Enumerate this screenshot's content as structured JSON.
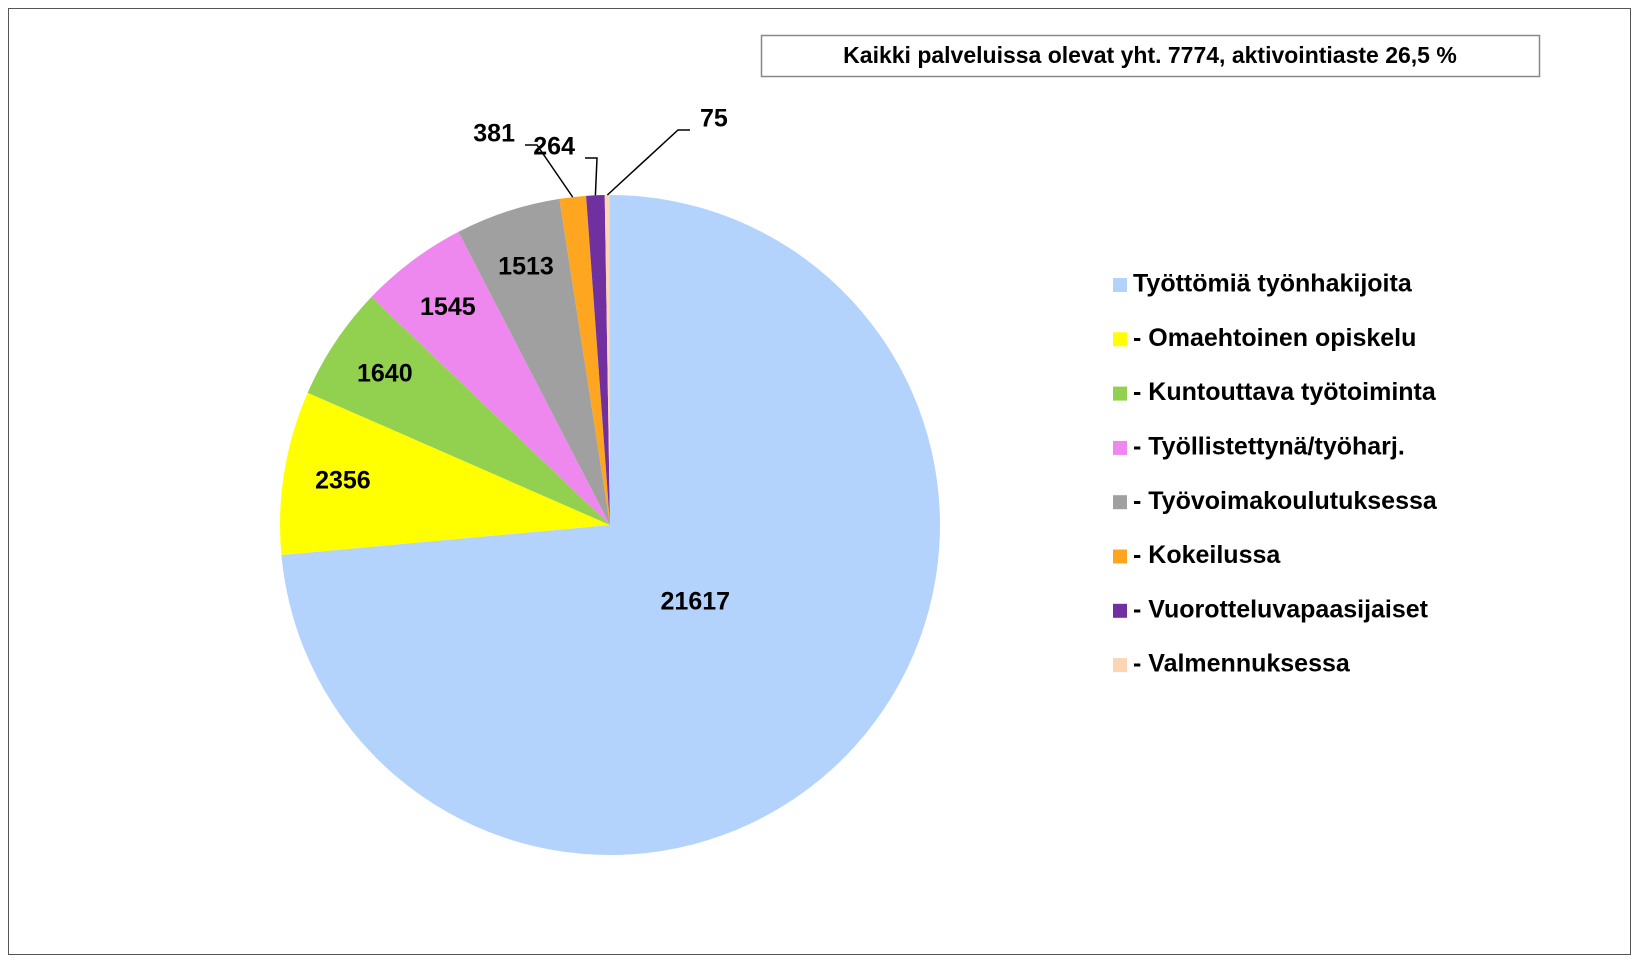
{
  "chart_data": {
    "type": "pie",
    "annotation": "Kaikki palveluissa olevat yht. 7774, aktivointiaste 26,5 %",
    "categories": [
      "Työttömiä työnhakijoita",
      " - Omaehtoinen opiskelu",
      " - Kuntouttava työtoiminta",
      " - Työllistettynä/työharj.",
      " - Työvoimakoulutuksessa",
      " - Kokeilussa",
      " - Vuorotteluvapaasijaiset",
      " - Valmennuksessa"
    ],
    "values": [
      21617,
      2356,
      1640,
      1545,
      1513,
      381,
      264,
      75
    ],
    "colors": [
      "#b3d3fc",
      "#ffff00",
      "#92d050",
      "#ee88ee",
      "#a0a0a0",
      "#ffa620",
      "#7030a0",
      "#fcd5b4"
    ],
    "legend": "right"
  }
}
